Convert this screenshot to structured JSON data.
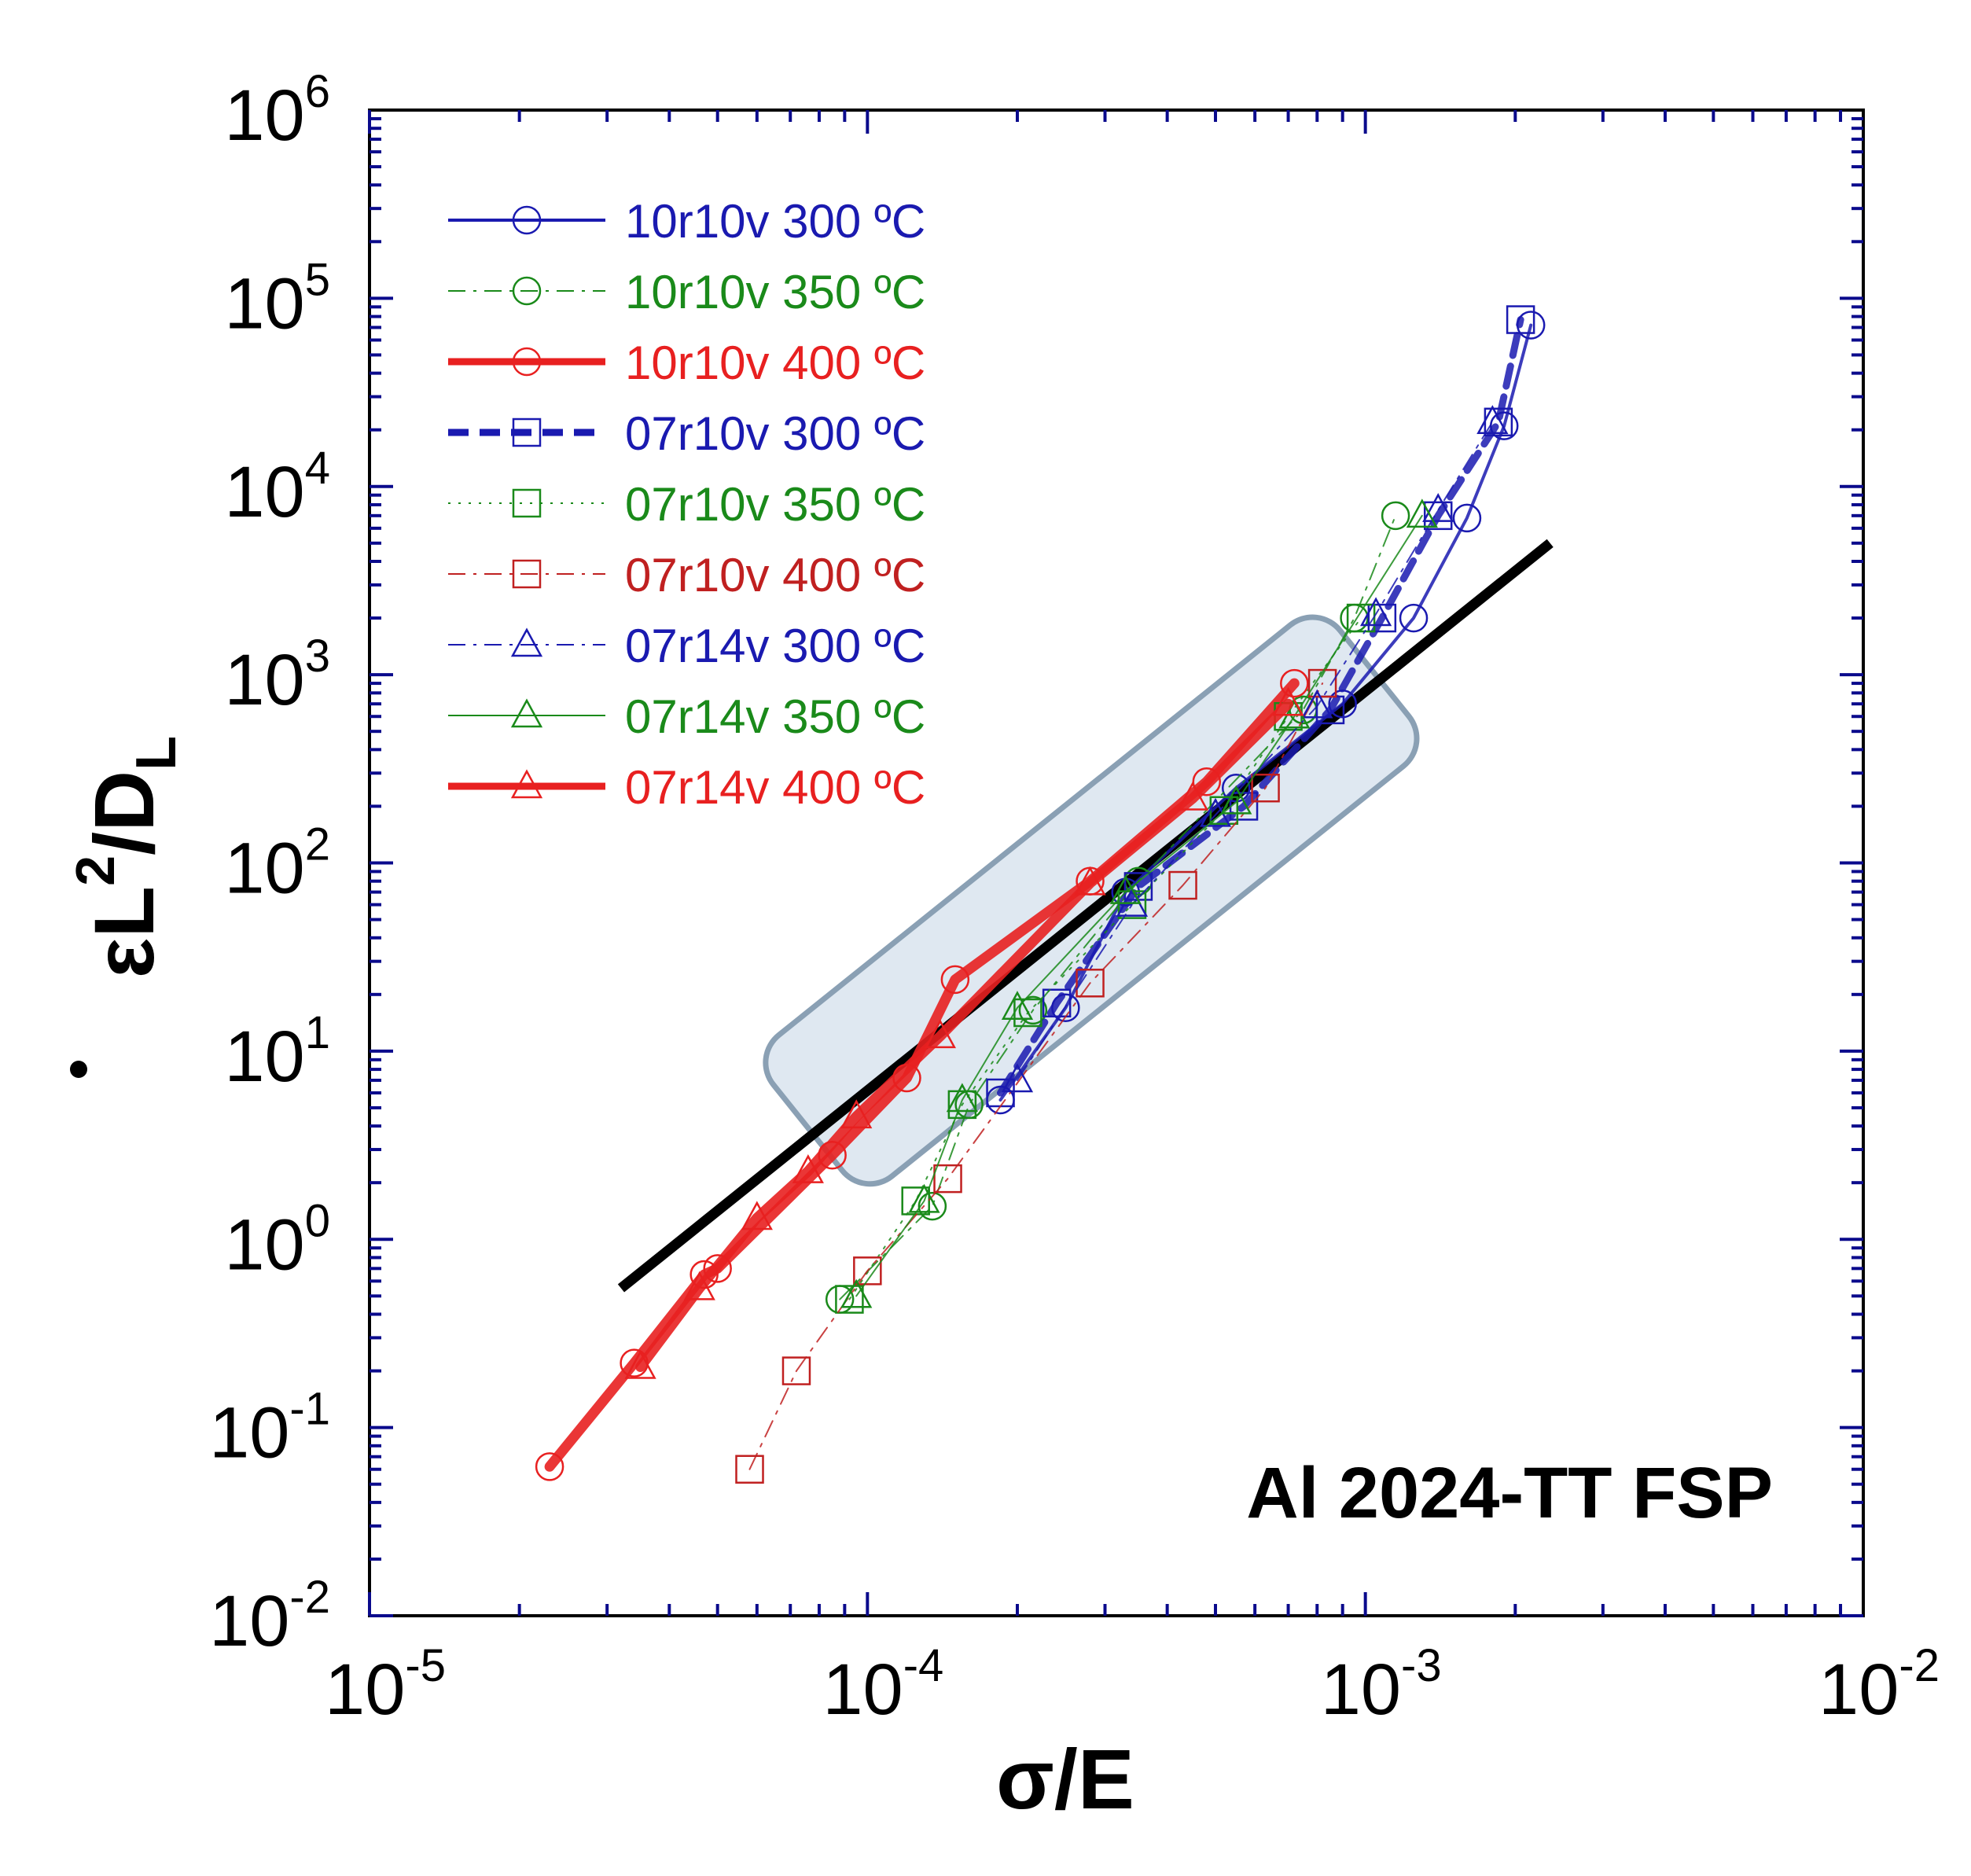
{
  "chart_data": {
    "type": "scatter",
    "title": "",
    "xlabel": "σ/E",
    "ylabel": "ε̇L²/D_L",
    "xscale": "log",
    "yscale": "log",
    "xlim": [
      1e-05,
      0.01
    ],
    "ylim": [
      0.01,
      1000000.0
    ],
    "x_ticks": [
      {
        "base": "10",
        "exp": "-5"
      },
      {
        "base": "10",
        "exp": "-4"
      },
      {
        "base": "10",
        "exp": "-3"
      },
      {
        "base": "10",
        "exp": "-2"
      }
    ],
    "y_ticks": [
      {
        "base": "10",
        "exp": "-2"
      },
      {
        "base": "10",
        "exp": "-1"
      },
      {
        "base": "10",
        "exp": "0"
      },
      {
        "base": "10",
        "exp": "1"
      },
      {
        "base": "10",
        "exp": "2"
      },
      {
        "base": "10",
        "exp": "3"
      },
      {
        "base": "10",
        "exp": "4"
      },
      {
        "base": "10",
        "exp": "5"
      },
      {
        "base": "10",
        "exp": "6"
      }
    ],
    "annotation": "Al 2024-TT FSP",
    "legend_position": "top-left",
    "grid": false,
    "axis_color": "#0a0a8c",
    "series": [
      {
        "name": "10r10v 300 ºC",
        "color": "#1a1ab0",
        "marker": "circle",
        "line": "solid",
        "width": 4,
        "x": [
          0.000185,
          0.00025,
          0.00033,
          0.00055,
          0.0009,
          0.00125,
          0.0016,
          0.0019,
          0.00215
        ],
        "y": [
          5.5,
          17,
          70,
          250,
          700,
          2000,
          6800,
          21000,
          72000
        ]
      },
      {
        "name": "10r10v 350 ºC",
        "color": "#1a8a1a",
        "marker": "circle",
        "line": "dashdot",
        "width": 2,
        "x": [
          8.8e-05,
          0.000135,
          0.00016,
          0.000215,
          0.00035,
          0.00075,
          0.00095,
          0.00115
        ],
        "y": [
          0.48,
          1.5,
          5.2,
          16.5,
          80,
          650,
          2000,
          7000
        ]
      },
      {
        "name": "10r10v 400 ºC",
        "color": "#e82020",
        "marker": "circle",
        "line": "solid",
        "width": 13,
        "x": [
          2.3e-05,
          3.4e-05,
          4.7e-05,
          5e-05,
          8.5e-05,
          0.00012,
          0.00015,
          0.00028,
          0.00048,
          0.00072
        ],
        "y": [
          0.062,
          0.22,
          0.65,
          0.7,
          2.8,
          7.2,
          24,
          80,
          270,
          900
        ]
      },
      {
        "name": "07r10v 300 ºC",
        "color": "#1a1ab0",
        "marker": "square",
        "line": "dash",
        "width": 9,
        "x": [
          0.000185,
          0.00024,
          0.00035,
          0.00057,
          0.00085,
          0.00108,
          0.0014,
          0.00185,
          0.00205
        ],
        "y": [
          6,
          18,
          75,
          200,
          650,
          2000,
          7000,
          22000,
          77000
        ]
      },
      {
        "name": "07r10v 350 ºC",
        "color": "#1a8a1a",
        "marker": "square",
        "line": "dot",
        "width": 2,
        "x": [
          9.2e-05,
          0.000125,
          0.000155,
          0.00021,
          0.00034,
          0.00052,
          0.0007,
          0.00098
        ],
        "y": [
          0.48,
          1.6,
          5.2,
          16,
          60,
          190,
          600,
          2000
        ]
      },
      {
        "name": "07r10v 400 ºC",
        "color": "#c02020",
        "marker": "square",
        "line": "dashdot",
        "width": 2,
        "x": [
          5.8e-05,
          7.2e-05,
          0.0001,
          0.000145,
          0.00028,
          0.00043,
          0.00063,
          0.00082
        ],
        "y": [
          0.06,
          0.2,
          0.68,
          2.1,
          23,
          76,
          250,
          900
        ]
      },
      {
        "name": "07r14v 300 ºC",
        "color": "#1a1ab0",
        "marker": "triangle",
        "line": "dashdot",
        "width": 2,
        "x": [
          0.0002,
          0.00034,
          0.0005,
          0.0008,
          0.00105,
          0.0014,
          0.0018
        ],
        "y": [
          7,
          60,
          180,
          680,
          2100,
          7500,
          22000
        ]
      },
      {
        "name": "07r14v 350 ºC",
        "color": "#1a8a1a",
        "marker": "triangle",
        "line": "solid",
        "width": 2,
        "x": [
          9.5e-05,
          0.00013,
          0.000155,
          0.0002,
          0.00033,
          0.00055,
          0.00072,
          0.0013
        ],
        "y": [
          0.5,
          1.6,
          5.5,
          17,
          70,
          210,
          600,
          7000
        ]
      },
      {
        "name": "07r14v 400 ºC",
        "color": "#e82020",
        "marker": "triangle",
        "line": "solid",
        "width": 13,
        "x": [
          3.5e-05,
          4.6e-05,
          6e-05,
          7.6e-05,
          9.5e-05,
          0.00014,
          0.00028,
          0.00045,
          0.0007
        ],
        "y": [
          0.21,
          0.55,
          1.3,
          2.3,
          4.5,
          12,
          78,
          220,
          700
        ]
      }
    ],
    "reference_line": {
      "x": [
        3.2e-05,
        0.00235
      ],
      "y": [
        0.55,
        5000
      ],
      "color": "#000000"
    },
    "highlight_box": {
      "x": [
        9e-05,
        0.00088
      ],
      "y_center_log": [
        0.05,
        3.3
      ],
      "fill": "#b8cce0",
      "stroke": "#8aa0b4"
    }
  }
}
